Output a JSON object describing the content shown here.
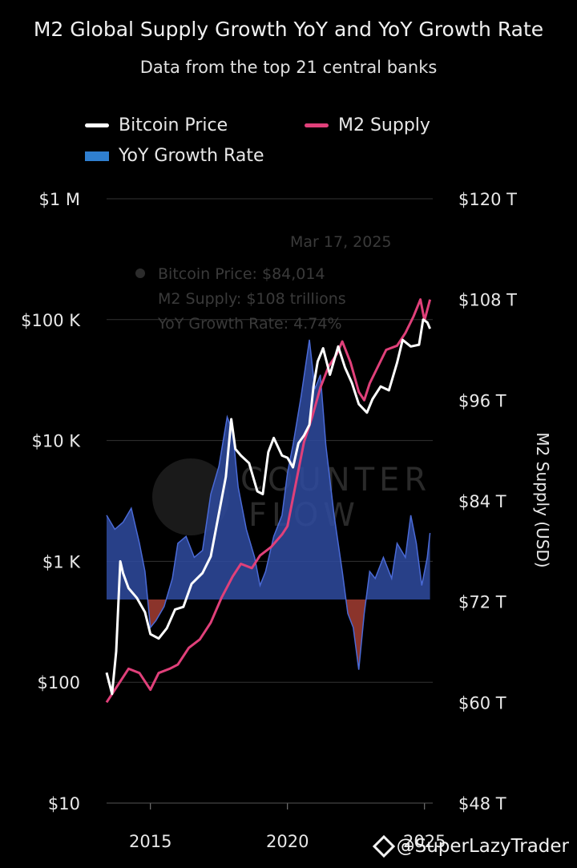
{
  "colors": {
    "background": "#000000",
    "bitcoin": "#ffffff",
    "m2": "#e0407a",
    "yoy_positive": "#2f4ba0",
    "yoy_positive_line": "#4a6ad6",
    "yoy_negative": "#9a3a30",
    "grid": "#333333"
  },
  "credit": "@SuperLazyTrader",
  "watermark": {
    "line1": "COUNTER",
    "line2": "FLOW"
  },
  "tooltip": {
    "date": "Mar 17, 2025",
    "bitcoin": "Bitcoin Price: $84,014",
    "m2": "M2 Supply: $108 trillions",
    "yoy": "YoY Growth Rate: 4.74%"
  },
  "chart_data": {
    "type": "line",
    "title": "M2 Global Supply Growth YoY and YoY Growth Rate",
    "subtitle": "Data from the top 21 central banks",
    "legend": {
      "placement": "top",
      "entries": [
        "Bitcoin Price",
        "M2 Supply",
        "YoY Growth Rate"
      ]
    },
    "x_ticks": [
      2015,
      2020,
      2025
    ],
    "xlim": [
      2013.4,
      2025.3
    ],
    "left_axis": {
      "scale": "log",
      "ylim": [
        10,
        1000000
      ],
      "ticks": [
        {
          "value": 10,
          "label": "$10"
        },
        {
          "value": 100,
          "label": "$100"
        },
        {
          "value": 1000,
          "label": "$1 K"
        },
        {
          "value": 10000,
          "label": "$10 K"
        },
        {
          "value": 100000,
          "label": "$100 K"
        },
        {
          "value": 1000000,
          "label": "$1 M"
        }
      ]
    },
    "right_axis": {
      "label": "M2 Supply (USD)",
      "ylim": [
        48,
        120
      ],
      "ticks": [
        {
          "value": 48,
          "label": "$48 T"
        },
        {
          "value": 60,
          "label": "$60 T"
        },
        {
          "value": 72,
          "label": "$72 T"
        },
        {
          "value": 84,
          "label": "$84 T"
        },
        {
          "value": 96,
          "label": "$96 T"
        },
        {
          "value": 108,
          "label": "$108 T"
        },
        {
          "value": 120,
          "label": "$120 T"
        }
      ]
    },
    "series": [
      {
        "name": "Bitcoin Price",
        "axis": "left",
        "x": [
          2013.4,
          2013.6,
          2013.75,
          2013.9,
          2014.0,
          2014.2,
          2014.5,
          2014.8,
          2015.0,
          2015.3,
          2015.6,
          2015.9,
          2016.2,
          2016.5,
          2016.9,
          2017.2,
          2017.5,
          2017.75,
          2017.95,
          2018.1,
          2018.3,
          2018.6,
          2018.9,
          2019.1,
          2019.3,
          2019.5,
          2019.8,
          2020.0,
          2020.2,
          2020.4,
          2020.6,
          2020.8,
          2020.95,
          2021.1,
          2021.3,
          2021.55,
          2021.85,
          2022.1,
          2022.35,
          2022.6,
          2022.9,
          2023.1,
          2023.4,
          2023.7,
          2024.0,
          2024.2,
          2024.5,
          2024.8,
          2024.95,
          2025.1,
          2025.2
        ],
        "values": [
          120,
          80,
          180,
          1000,
          800,
          600,
          500,
          380,
          250,
          230,
          280,
          400,
          420,
          650,
          800,
          1100,
          2500,
          5000,
          15000,
          8500,
          7500,
          6500,
          3800,
          3600,
          8000,
          10500,
          7500,
          7200,
          6000,
          9500,
          11000,
          13500,
          28000,
          45000,
          58000,
          35000,
          60000,
          40000,
          30000,
          20000,
          17000,
          22000,
          28000,
          26000,
          44000,
          68000,
          60000,
          62000,
          100000,
          95000,
          84014
        ]
      },
      {
        "name": "M2 Supply",
        "axis": "right",
        "x": [
          2013.4,
          2013.8,
          2014.2,
          2014.6,
          2015.0,
          2015.3,
          2015.7,
          2016.0,
          2016.4,
          2016.8,
          2017.2,
          2017.6,
          2018.0,
          2018.3,
          2018.7,
          2019.0,
          2019.4,
          2019.8,
          2020.0,
          2020.3,
          2020.6,
          2020.9,
          2021.2,
          2021.5,
          2021.8,
          2022.0,
          2022.3,
          2022.6,
          2022.8,
          2023.0,
          2023.3,
          2023.6,
          2024.0,
          2024.3,
          2024.6,
          2024.85,
          2025.0,
          2025.2
        ],
        "values": [
          60,
          62,
          64,
          63.5,
          61.5,
          63.5,
          64,
          64.5,
          66.5,
          67.5,
          69.5,
          72.5,
          75,
          76.5,
          76,
          77.5,
          78.5,
          80,
          81,
          86,
          91,
          94,
          97.5,
          100,
          101.5,
          103,
          100.5,
          97,
          96,
          98,
          100,
          102,
          102.5,
          104,
          106,
          108,
          105.5,
          108
        ]
      },
      {
        "name": "YoY Growth Rate",
        "axis": "area",
        "x": [
          2013.4,
          2013.7,
          2014.0,
          2014.3,
          2014.6,
          2014.8,
          2015.0,
          2015.2,
          2015.5,
          2015.8,
          2016.0,
          2016.3,
          2016.6,
          2016.9,
          2017.2,
          2017.5,
          2017.8,
          2018.0,
          2018.2,
          2018.5,
          2018.8,
          2019.0,
          2019.2,
          2019.5,
          2019.8,
          2020.0,
          2020.2,
          2020.5,
          2020.8,
          2021.0,
          2021.2,
          2021.4,
          2021.7,
          2022.0,
          2022.2,
          2022.4,
          2022.6,
          2022.8,
          2023.0,
          2023.2,
          2023.5,
          2023.8,
          2024.0,
          2024.3,
          2024.5,
          2024.7,
          2024.9,
          2025.1,
          2025.2
        ],
        "values": [
          6,
          5,
          5.5,
          6.5,
          4,
          2,
          -2,
          -1.5,
          -0.5,
          1.5,
          4,
          4.5,
          3,
          3.5,
          7.5,
          9.5,
          13,
          12,
          8,
          5,
          3,
          1,
          2,
          4.5,
          6,
          9,
          11,
          14.5,
          18.5,
          15,
          16,
          11,
          6,
          2,
          -1,
          -2,
          -5,
          -1,
          2,
          1.5,
          3,
          1.5,
          4,
          3,
          6,
          4,
          1,
          3,
          4.74
        ]
      }
    ],
    "yoy_scale_note": "",
    "yoy_ylim": [
      -15,
      25
    ]
  }
}
